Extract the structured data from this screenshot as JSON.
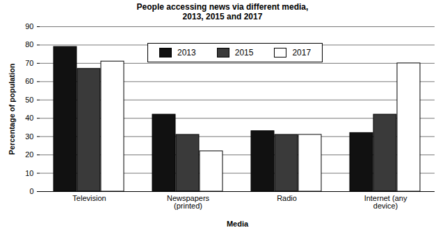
{
  "chart_data": {
    "type": "bar",
    "title": "People accessing news via different media,\n2013, 2015 and 2017",
    "x_label": "Media",
    "y_label": "Percentage of population",
    "categories": [
      "Television",
      "Newspapers\n(printed)",
      "Radio",
      "Internet (any\ndevice)"
    ],
    "series": [
      {
        "name": "2013",
        "color": "#111111",
        "values": [
          79,
          42,
          33,
          32
        ]
      },
      {
        "name": "2015",
        "color": "#3a3a3a",
        "values": [
          67,
          31,
          31,
          42
        ]
      },
      {
        "name": "2017",
        "color": "#ffffff",
        "values": [
          71,
          22,
          31,
          70
        ]
      }
    ],
    "ylim": [
      0,
      90
    ],
    "yticks": [
      0,
      10,
      20,
      30,
      40,
      50,
      60,
      70,
      80,
      90
    ],
    "grid": true,
    "legend": "top"
  }
}
